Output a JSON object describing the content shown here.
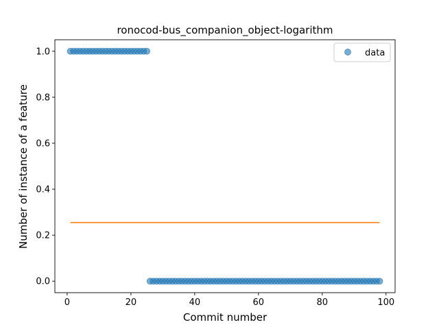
{
  "chart_data": {
    "type": "scatter",
    "title": "ronocod-bus_companion_object-logarithm",
    "xlabel": "Commit number",
    "ylabel": "Number of instance of a feature",
    "xlim": [
      -3.85,
      102.85
    ],
    "ylim": [
      -0.05,
      1.05
    ],
    "xticks": [
      0,
      20,
      40,
      60,
      80,
      100
    ],
    "yticks": [
      0.0,
      0.2,
      0.4,
      0.6,
      0.8,
      1.0
    ],
    "xtick_labels": [
      "0",
      "20",
      "40",
      "60",
      "80",
      "100"
    ],
    "ytick_labels": [
      "0.0",
      "0.2",
      "0.4",
      "0.6",
      "0.8",
      "1.0"
    ],
    "legend": {
      "position": "top-right",
      "entries": [
        "data"
      ]
    },
    "grid": false,
    "series": [
      {
        "name": "data",
        "kind": "scatter",
        "color": "#1f77b4",
        "x": [
          1,
          2,
          3,
          4,
          5,
          6,
          7,
          8,
          9,
          10,
          11,
          12,
          13,
          14,
          15,
          16,
          17,
          18,
          19,
          20,
          21,
          22,
          23,
          24,
          25,
          26,
          27,
          28,
          29,
          30,
          31,
          32,
          33,
          34,
          35,
          36,
          37,
          38,
          39,
          40,
          41,
          42,
          43,
          44,
          45,
          46,
          47,
          48,
          49,
          50,
          51,
          52,
          53,
          54,
          55,
          56,
          57,
          58,
          59,
          60,
          61,
          62,
          63,
          64,
          65,
          66,
          67,
          68,
          69,
          70,
          71,
          72,
          73,
          74,
          75,
          76,
          77,
          78,
          79,
          80,
          81,
          82,
          83,
          84,
          85,
          86,
          87,
          88,
          89,
          90,
          91,
          92,
          93,
          94,
          95,
          96,
          97,
          98
        ],
        "y": [
          1,
          1,
          1,
          1,
          1,
          1,
          1,
          1,
          1,
          1,
          1,
          1,
          1,
          1,
          1,
          1,
          1,
          1,
          1,
          1,
          1,
          1,
          1,
          1,
          1,
          0,
          0,
          0,
          0,
          0,
          0,
          0,
          0,
          0,
          0,
          0,
          0,
          0,
          0,
          0,
          0,
          0,
          0,
          0,
          0,
          0,
          0,
          0,
          0,
          0,
          0,
          0,
          0,
          0,
          0,
          0,
          0,
          0,
          0,
          0,
          0,
          0,
          0,
          0,
          0,
          0,
          0,
          0,
          0,
          0,
          0,
          0,
          0,
          0,
          0,
          0,
          0,
          0,
          0,
          0,
          0,
          0,
          0,
          0,
          0,
          0,
          0,
          0,
          0,
          0,
          0,
          0,
          0,
          0,
          0,
          0,
          0,
          0
        ]
      },
      {
        "kind": "line",
        "color": "#ff7f0e",
        "x": [
          1,
          98
        ],
        "y": [
          0.255,
          0.255
        ]
      }
    ]
  }
}
